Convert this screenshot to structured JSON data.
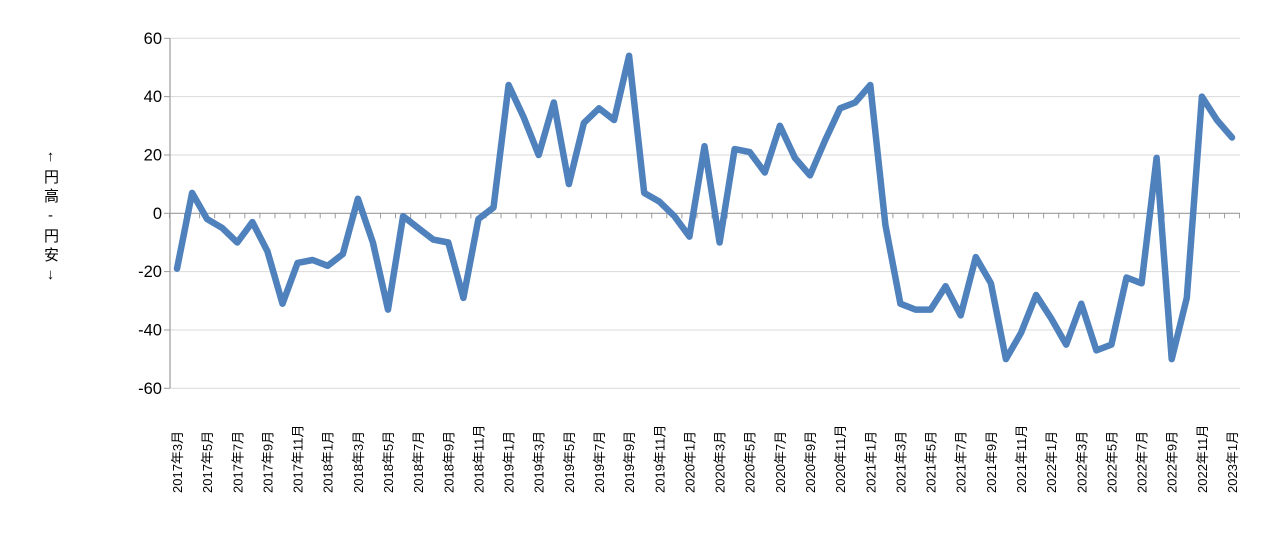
{
  "chart": {
    "y_axis_title": "↑円高-円安↓",
    "y_tick_labels": [
      "60",
      "40",
      "20",
      "0",
      "-20",
      "-40",
      "-60"
    ],
    "line_color": "#4F81BD",
    "grid_color": "#D9D9D9",
    "axis_color": "#9B9B9B",
    "text_color": "#000000"
  },
  "chart_data": {
    "type": "line",
    "title": "",
    "xlabel": "",
    "ylabel": "↑円高-円安↓",
    "ylim": [
      -60,
      60
    ],
    "ytick_step": 20,
    "grid": "horizontal",
    "legend": "none",
    "x_tick_label_every": 2,
    "line_color": "#4F81BD",
    "x": [
      "2017年3月",
      "2017年4月",
      "2017年5月",
      "2017年6月",
      "2017年7月",
      "2017年8月",
      "2017年9月",
      "2017年10月",
      "2017年11月",
      "2017年12月",
      "2018年1月",
      "2018年2月",
      "2018年3月",
      "2018年4月",
      "2018年5月",
      "2018年6月",
      "2018年7月",
      "2018年8月",
      "2018年9月",
      "2018年10月",
      "2018年11月",
      "2018年12月",
      "2019年1月",
      "2019年2月",
      "2019年3月",
      "2019年4月",
      "2019年5月",
      "2019年6月",
      "2019年7月",
      "2019年8月",
      "2019年9月",
      "2019年10月",
      "2019年11月",
      "2019年12月",
      "2020年1月",
      "2020年2月",
      "2020年3月",
      "2020年4月",
      "2020年5月",
      "2020年6月",
      "2020年7月",
      "2020年8月",
      "2020年9月",
      "2020年10月",
      "2020年11月",
      "2020年12月",
      "2021年1月",
      "2021年2月",
      "2021年3月",
      "2021年4月",
      "2021年5月",
      "2021年6月",
      "2021年7月",
      "2021年8月",
      "2021年9月",
      "2021年10月",
      "2021年11月",
      "2021年12月",
      "2022年1月",
      "2022年2月",
      "2022年3月",
      "2022年4月",
      "2022年5月",
      "2022年6月",
      "2022年7月",
      "2022年8月",
      "2022年9月",
      "2022年10月",
      "2022年11月",
      "2022年12月",
      "2023年1月"
    ],
    "values": [
      -19,
      7,
      -2,
      -5,
      -10,
      -3,
      -13,
      -31,
      -17,
      -16,
      -18,
      -14,
      5,
      -10,
      -33,
      -1,
      -5,
      -9,
      -10,
      -29,
      -2,
      2,
      44,
      33,
      20,
      38,
      10,
      31,
      36,
      32,
      54,
      7,
      4,
      -1,
      -8,
      23,
      -10,
      22,
      21,
      14,
      30,
      19,
      13,
      25,
      36,
      38,
      44,
      -4,
      -31,
      -33,
      -33,
      -25,
      -35,
      -15,
      -24,
      -50,
      -41,
      -28,
      -36,
      -45,
      -31,
      -47,
      -45,
      -22,
      -24,
      19,
      -50,
      -29,
      40,
      32,
      26
    ]
  }
}
